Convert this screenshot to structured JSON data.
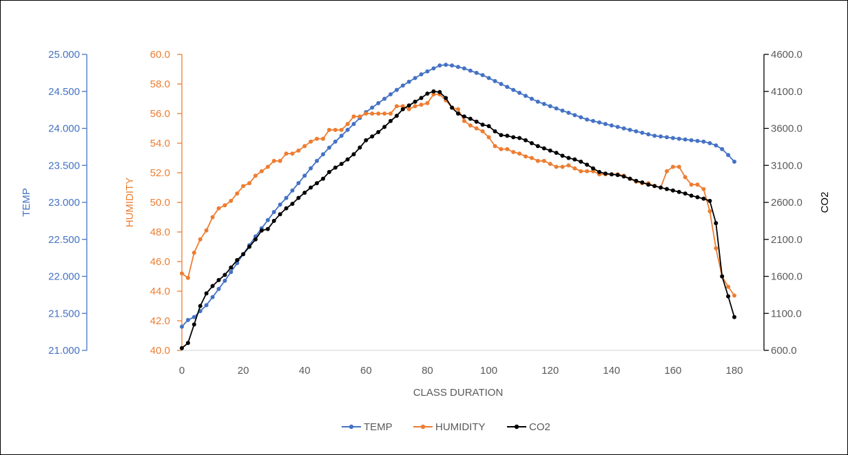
{
  "chart_data": {
    "type": "line",
    "title": "",
    "xlabel": "CLASS DURATION",
    "xlim": [
      0,
      180
    ],
    "x_ticks": [
      "0",
      "20",
      "40",
      "60",
      "80",
      "100",
      "120",
      "140",
      "160",
      "180"
    ],
    "grid": false,
    "legend_position": "bottom",
    "axes": {
      "temp": {
        "label": "TEMP",
        "range": [
          21.0,
          25.0
        ],
        "color": "#4472C4",
        "side": "left-outer",
        "ticks": [
          "21.000",
          "21.500",
          "22.000",
          "22.500",
          "23.000",
          "23.500",
          "24.000",
          "24.500",
          "25.000"
        ]
      },
      "humidity": {
        "label": "HUMIDITY",
        "range": [
          40.0,
          60.0
        ],
        "color": "#ED7D31",
        "side": "left-inner",
        "ticks": [
          "40.0",
          "42.0",
          "44.0",
          "46.0",
          "48.0",
          "50.0",
          "52.0",
          "54.0",
          "56.0",
          "58.0",
          "60.0"
        ]
      },
      "co2": {
        "label": "CO2",
        "range": [
          600.0,
          4600.0
        ],
        "color": "#000000",
        "side": "right",
        "ticks": [
          "600.0",
          "1100.0",
          "1600.0",
          "2100.0",
          "2600.0",
          "3100.0",
          "3600.0",
          "4100.0",
          "4600.0"
        ]
      }
    },
    "x": [
      0,
      2,
      4,
      6,
      8,
      10,
      12,
      14,
      16,
      18,
      20,
      22,
      24,
      26,
      28,
      30,
      32,
      34,
      36,
      38,
      40,
      42,
      44,
      46,
      48,
      50,
      52,
      54,
      56,
      58,
      60,
      62,
      64,
      66,
      68,
      70,
      72,
      74,
      76,
      78,
      80,
      82,
      84,
      86,
      88,
      90,
      92,
      94,
      96,
      98,
      100,
      102,
      104,
      106,
      108,
      110,
      112,
      114,
      116,
      118,
      120,
      122,
      124,
      126,
      128,
      130,
      132,
      134,
      136,
      138,
      140,
      142,
      144,
      146,
      148,
      150,
      152,
      154,
      156,
      158,
      160,
      162,
      164,
      166,
      168,
      170,
      172,
      174,
      176,
      178,
      180
    ],
    "series": [
      {
        "name": "TEMP",
        "axis": "temp",
        "color": "#4472C4",
        "values": [
          21.32,
          21.41,
          21.45,
          21.53,
          21.61,
          21.72,
          21.83,
          21.94,
          22.06,
          22.18,
          22.3,
          22.42,
          22.54,
          22.65,
          22.76,
          22.87,
          22.97,
          23.06,
          23.16,
          23.26,
          23.36,
          23.46,
          23.56,
          23.65,
          23.74,
          23.82,
          23.9,
          23.98,
          24.06,
          24.14,
          24.22,
          24.28,
          24.34,
          24.4,
          24.46,
          24.52,
          24.58,
          24.63,
          24.68,
          24.73,
          24.77,
          24.81,
          24.85,
          24.86,
          24.85,
          24.83,
          24.81,
          24.78,
          24.75,
          24.72,
          24.68,
          24.64,
          24.6,
          24.56,
          24.52,
          24.48,
          24.44,
          24.4,
          24.36,
          24.33,
          24.3,
          24.27,
          24.24,
          24.21,
          24.18,
          24.15,
          24.12,
          24.1,
          24.08,
          24.06,
          24.04,
          24.02,
          24.0,
          23.98,
          23.96,
          23.94,
          23.92,
          23.9,
          23.89,
          23.88,
          23.87,
          23.86,
          23.85,
          23.84,
          23.83,
          23.82,
          23.8,
          23.77,
          23.72,
          23.64,
          23.55
        ]
      },
      {
        "name": "HUMIDITY",
        "axis": "humidity",
        "color": "#ED7D31",
        "values": [
          45.2,
          44.9,
          46.6,
          47.5,
          48.1,
          49.0,
          49.6,
          49.8,
          50.1,
          50.6,
          51.1,
          51.3,
          51.8,
          52.1,
          52.4,
          52.8,
          52.8,
          53.3,
          53.3,
          53.5,
          53.8,
          54.1,
          54.3,
          54.3,
          54.9,
          54.9,
          54.9,
          55.3,
          55.8,
          55.8,
          56.0,
          56.0,
          56.0,
          56.0,
          56.0,
          56.5,
          56.5,
          56.3,
          56.5,
          56.6,
          56.7,
          57.3,
          57.3,
          56.9,
          56.4,
          56.3,
          55.5,
          55.2,
          55.0,
          54.8,
          54.4,
          53.8,
          53.6,
          53.6,
          53.4,
          53.3,
          53.1,
          53.0,
          52.8,
          52.8,
          52.6,
          52.4,
          52.4,
          52.5,
          52.3,
          52.1,
          52.1,
          52.1,
          51.9,
          51.9,
          51.9,
          51.9,
          51.8,
          51.6,
          51.4,
          51.3,
          51.3,
          51.1,
          51.0,
          52.1,
          52.4,
          52.4,
          51.7,
          51.2,
          51.2,
          50.9,
          49.4,
          46.9,
          45.0,
          44.3,
          43.7
        ]
      },
      {
        "name": "CO2",
        "axis": "co2",
        "color": "#000000",
        "values": [
          630,
          700,
          950,
          1200,
          1370,
          1470,
          1550,
          1620,
          1720,
          1820,
          1900,
          2000,
          2100,
          2220,
          2240,
          2350,
          2440,
          2520,
          2580,
          2660,
          2730,
          2800,
          2860,
          2920,
          3010,
          3070,
          3120,
          3180,
          3250,
          3340,
          3440,
          3490,
          3550,
          3620,
          3700,
          3770,
          3860,
          3910,
          3960,
          4010,
          4070,
          4100,
          4090,
          4010,
          3880,
          3800,
          3760,
          3730,
          3690,
          3650,
          3630,
          3560,
          3510,
          3500,
          3480,
          3470,
          3440,
          3400,
          3360,
          3330,
          3300,
          3270,
          3230,
          3200,
          3180,
          3150,
          3110,
          3060,
          3010,
          2990,
          2980,
          2970,
          2950,
          2920,
          2890,
          2870,
          2840,
          2820,
          2800,
          2780,
          2760,
          2740,
          2720,
          2690,
          2670,
          2650,
          2620,
          2320,
          1600,
          1330,
          1050
        ]
      }
    ]
  }
}
